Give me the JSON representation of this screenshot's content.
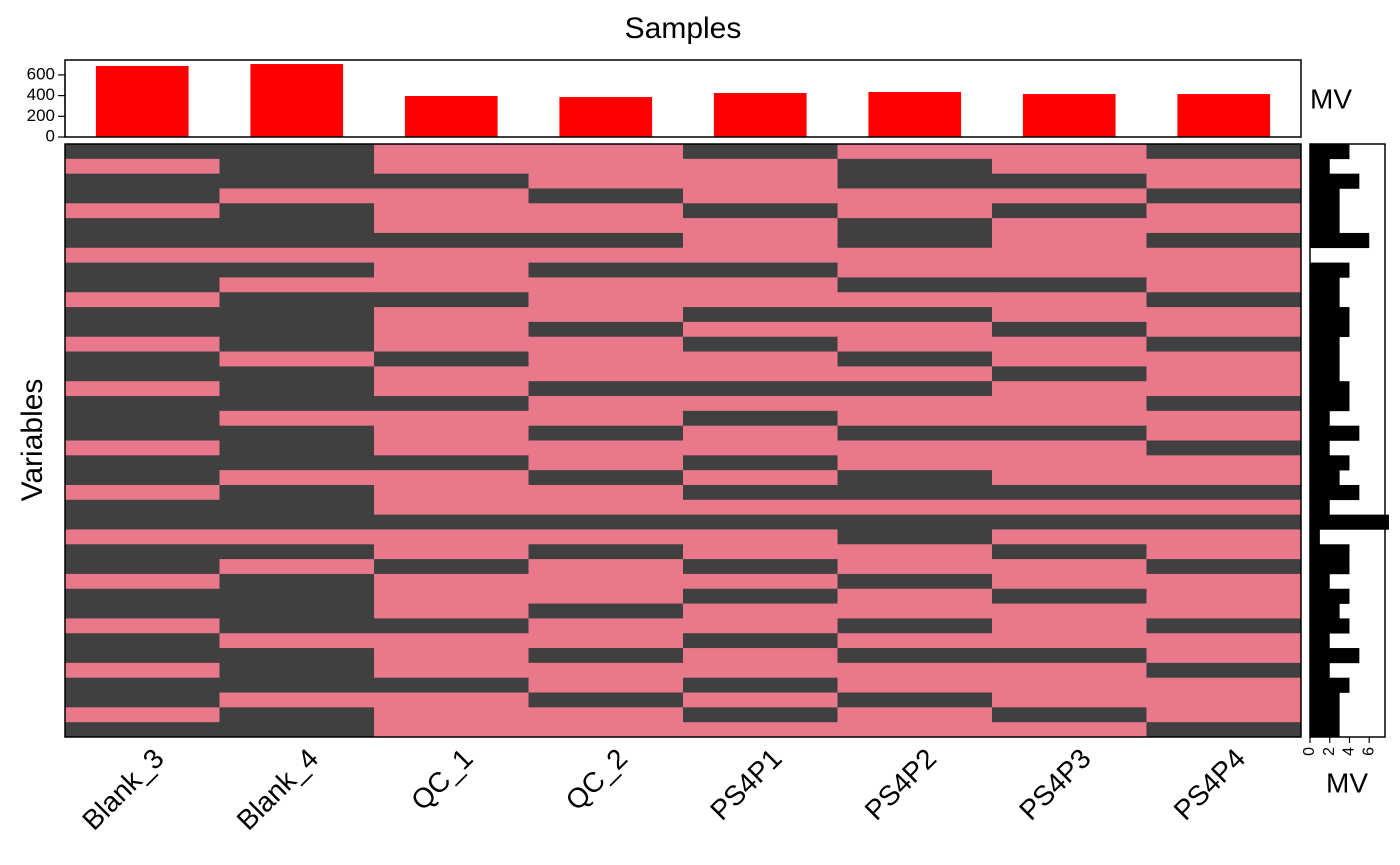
{
  "chart_data": [
    {
      "type": "bar",
      "title": "Samples",
      "values": [
        686,
        705,
        396,
        386,
        425,
        435,
        415,
        415
      ],
      "color": "#ff0000",
      "ylim": [
        0,
        744
      ],
      "yticks": [
        0,
        200,
        400,
        600
      ],
      "ylabel": "MV"
    },
    {
      "type": "heatmap",
      "x": [
        "Blank_3",
        "Blank_4",
        "QC_1",
        "QC_2",
        "PS4P1",
        "PS4P2",
        "PS4P3",
        "PS4P4"
      ],
      "ylabel": "Variables",
      "colors": [
        "#e8788a",
        "#404040"
      ],
      "values": [
        [
          1,
          1,
          0,
          0,
          1,
          0,
          0,
          1
        ],
        [
          0,
          1,
          0,
          0,
          0,
          1,
          0,
          0
        ],
        [
          1,
          1,
          1,
          0,
          0,
          1,
          1,
          0
        ],
        [
          1,
          0,
          0,
          1,
          0,
          0,
          0,
          1
        ],
        [
          0,
          1,
          0,
          0,
          1,
          0,
          1,
          0
        ],
        [
          1,
          1,
          0,
          0,
          0,
          1,
          0,
          0
        ],
        [
          1,
          1,
          1,
          1,
          0,
          1,
          0,
          1
        ],
        [
          0,
          0,
          0,
          0,
          0,
          0,
          0,
          0
        ],
        [
          1,
          1,
          0,
          1,
          1,
          0,
          0,
          0
        ],
        [
          1,
          0,
          0,
          0,
          0,
          1,
          1,
          0
        ],
        [
          0,
          1,
          1,
          0,
          0,
          0,
          0,
          1
        ],
        [
          1,
          1,
          0,
          0,
          1,
          1,
          0,
          0
        ],
        [
          1,
          1,
          0,
          1,
          0,
          0,
          1,
          0
        ],
        [
          0,
          1,
          0,
          0,
          1,
          0,
          0,
          1
        ],
        [
          1,
          0,
          1,
          0,
          0,
          1,
          0,
          0
        ],
        [
          1,
          1,
          0,
          0,
          0,
          0,
          1,
          0
        ],
        [
          0,
          1,
          0,
          1,
          1,
          1,
          0,
          0
        ],
        [
          1,
          1,
          1,
          0,
          0,
          0,
          0,
          1
        ],
        [
          1,
          0,
          0,
          0,
          1,
          0,
          0,
          0
        ],
        [
          1,
          1,
          0,
          1,
          0,
          1,
          1,
          0
        ],
        [
          0,
          1,
          0,
          0,
          0,
          0,
          0,
          1
        ],
        [
          1,
          1,
          1,
          0,
          1,
          0,
          0,
          0
        ],
        [
          1,
          0,
          0,
          1,
          0,
          1,
          0,
          0
        ],
        [
          0,
          1,
          0,
          0,
          1,
          1,
          1,
          1
        ],
        [
          1,
          1,
          0,
          0,
          0,
          0,
          0,
          0
        ],
        [
          1,
          1,
          1,
          1,
          1,
          1,
          1,
          1
        ],
        [
          0,
          0,
          0,
          0,
          0,
          1,
          0,
          0
        ],
        [
          1,
          1,
          0,
          1,
          0,
          0,
          1,
          0
        ],
        [
          1,
          0,
          1,
          0,
          1,
          0,
          0,
          1
        ],
        [
          0,
          1,
          0,
          0,
          0,
          1,
          0,
          0
        ],
        [
          1,
          1,
          0,
          0,
          1,
          0,
          1,
          0
        ],
        [
          1,
          1,
          0,
          1,
          0,
          0,
          0,
          0
        ],
        [
          0,
          1,
          1,
          0,
          0,
          1,
          0,
          1
        ],
        [
          1,
          0,
          0,
          0,
          1,
          0,
          0,
          0
        ],
        [
          1,
          1,
          0,
          1,
          0,
          1,
          1,
          0
        ],
        [
          0,
          1,
          0,
          0,
          0,
          0,
          0,
          1
        ],
        [
          1,
          1,
          1,
          0,
          1,
          0,
          0,
          0
        ],
        [
          1,
          0,
          0,
          1,
          0,
          1,
          0,
          0
        ],
        [
          0,
          1,
          0,
          0,
          1,
          0,
          1,
          0
        ],
        [
          1,
          1,
          0,
          0,
          0,
          0,
          0,
          1
        ]
      ]
    },
    {
      "type": "barh",
      "values": [
        4,
        2,
        5,
        3,
        3,
        3,
        6,
        0,
        4,
        3,
        3,
        4,
        4,
        3,
        3,
        3,
        4,
        4,
        2,
        5,
        2,
        4,
        3,
        5,
        2,
        8,
        1,
        4,
        4,
        2,
        4,
        3,
        4,
        2,
        5,
        2,
        4,
        3,
        3,
        3
      ],
      "color": "#000000",
      "xlim": [
        0,
        7.6
      ],
      "xticks": [
        0,
        2,
        4,
        6
      ],
      "xlabel": "MV"
    }
  ]
}
